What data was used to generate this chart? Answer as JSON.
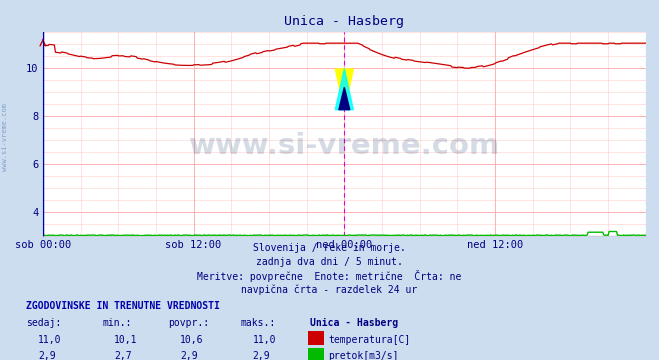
{
  "title": "Unica - Hasberg",
  "bg_color": "#ccddf0",
  "plot_bg": "#ffffff",
  "x_ticks_labels": [
    "sob 00:00",
    "sob 12:00",
    "ned 00:00",
    "ned 12:00"
  ],
  "y_min": 3.0,
  "y_max": 11.5,
  "y_ticks": [
    4,
    6,
    8,
    10
  ],
  "temp_color": "#cc0000",
  "flow_color": "#00bb00",
  "blue_line_color": "#0000cc",
  "magenta_vline_color": "#dd00dd",
  "subtitle_lines": [
    "Slovenija / reke in morje.",
    "zadnja dva dni / 5 minut.",
    "Meritve: povprečne  Enote: metrične  Črta: ne",
    "navpična črta - razdelek 24 ur"
  ],
  "table_header": "ZGODOVINSKE IN TRENUTNE VREDNOSTI",
  "col_headers": [
    "sedaj:",
    "min.:",
    "povpr.:",
    "maks.:",
    "Unica - Hasberg"
  ],
  "row1_vals": [
    "11,0",
    "10,1",
    "10,6",
    "11,0"
  ],
  "row1_label": "temperatura[C]",
  "row1_color": "#cc0000",
  "row2_vals": [
    "2,9",
    "2,7",
    "2,9",
    "2,9"
  ],
  "row2_label": "pretok[m3/s]",
  "row2_color": "#00bb00",
  "watermark_text": "www.si-vreme.com",
  "watermark_color": "#1a3a6a",
  "watermark_alpha": 0.18,
  "sidebar_text": "www.si-vreme.com"
}
